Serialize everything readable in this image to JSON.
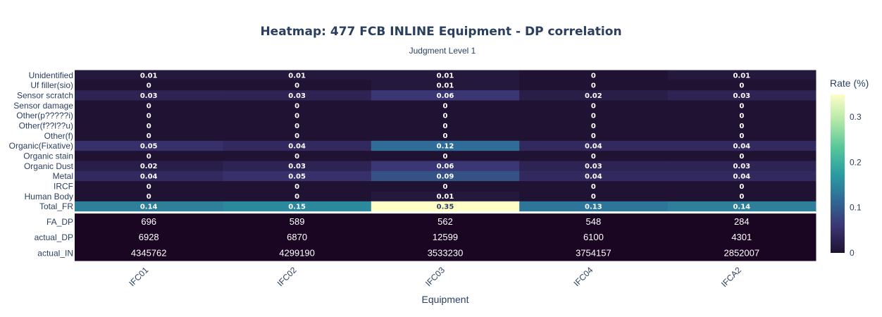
{
  "chart_data": {
    "type": "heatmap",
    "title": "Heatmap: 477  FCB INLINE Equipment - DP correlation",
    "subtitle": "Judgment Level 1",
    "xlabel": "Equipment",
    "colorbar_title": "Rate (%)",
    "colorbar_ticks": [
      "0",
      "0.1",
      "0.2",
      "0.3"
    ],
    "colorbar_range": [
      0,
      0.35
    ],
    "colorscale": [
      "#1f1232",
      "#3b3573",
      "#2f6a96",
      "#2a9ea1",
      "#57c79a",
      "#b1e8a8",
      "#fefec6"
    ],
    "x": [
      "IFC01",
      "IFC02",
      "IFC03",
      "IFC04",
      "IFCA2"
    ],
    "rate_rows": [
      {
        "name": "Unidentified",
        "values": [
          0.01,
          0.01,
          0.01,
          0,
          0.01
        ],
        "labels": [
          "0.01",
          "0.01",
          "0.01",
          "0",
          "0.01"
        ]
      },
      {
        "name": "Uf filler(sio)",
        "values": [
          0,
          0,
          0.01,
          0,
          0
        ],
        "labels": [
          "0",
          "0",
          "0.01",
          "0",
          "0"
        ]
      },
      {
        "name": "Sensor scratch",
        "values": [
          0.03,
          0.03,
          0.06,
          0.02,
          0.03
        ],
        "labels": [
          "0.03",
          "0.03",
          "0.06",
          "0.02",
          "0.03"
        ]
      },
      {
        "name": "Sensor damage",
        "values": [
          0,
          0,
          0,
          0,
          0
        ],
        "labels": [
          "0",
          "0",
          "0",
          "0",
          "0"
        ]
      },
      {
        "name": "Other(p?????i)",
        "values": [
          0,
          0,
          0,
          0,
          0
        ],
        "labels": [
          "0",
          "0",
          "0",
          "0",
          "0"
        ]
      },
      {
        "name": "Other(f??l??u)",
        "values": [
          0,
          0,
          0,
          0,
          0
        ],
        "labels": [
          "0",
          "0",
          "0",
          "0",
          "0"
        ]
      },
      {
        "name": "Other(f)",
        "values": [
          0,
          0,
          0,
          0,
          0
        ],
        "labels": [
          "0",
          "0",
          "0",
          "0",
          "0"
        ]
      },
      {
        "name": "Organic(Fixative)",
        "values": [
          0.05,
          0.04,
          0.12,
          0.04,
          0.04
        ],
        "labels": [
          "0.05",
          "0.04",
          "0.12",
          "0.04",
          "0.04"
        ]
      },
      {
        "name": "Organic stain",
        "values": [
          0,
          0,
          0,
          0,
          0
        ],
        "labels": [
          "0",
          "0",
          "0",
          "0",
          "0"
        ]
      },
      {
        "name": "Organic Dust",
        "values": [
          0.02,
          0.03,
          0.06,
          0.03,
          0.03
        ],
        "labels": [
          "0.02",
          "0.03",
          "0.06",
          "0.03",
          "0.03"
        ]
      },
      {
        "name": "Metal",
        "values": [
          0.04,
          0.05,
          0.09,
          0.04,
          0.04
        ],
        "labels": [
          "0.04",
          "0.05",
          "0.09",
          "0.04",
          "0.04"
        ]
      },
      {
        "name": "IRCF",
        "values": [
          0,
          0,
          0,
          0,
          0
        ],
        "labels": [
          "0",
          "0",
          "0",
          "0",
          "0"
        ]
      },
      {
        "name": "Human Body",
        "values": [
          0,
          0,
          0.01,
          0,
          0
        ],
        "labels": [
          "0",
          "0",
          "0.01",
          "0",
          "0"
        ]
      },
      {
        "name": "Total_FR",
        "values": [
          0.14,
          0.15,
          0.35,
          0.13,
          0.14
        ],
        "labels": [
          "0.14",
          "0.15",
          "0.35",
          "0.13",
          "0.14"
        ]
      }
    ],
    "count_rows": [
      {
        "name": "FA_DP",
        "labels": [
          "696",
          "589",
          "562",
          "548",
          "284"
        ]
      },
      {
        "name": "actual_DP",
        "labels": [
          "6928",
          "6870",
          "12599",
          "6100",
          "4301"
        ]
      },
      {
        "name": "actual_IN",
        "labels": [
          "4345762",
          "4299190",
          "3533230",
          "3754157",
          "2852007"
        ]
      }
    ],
    "count_cell_color": "#1a0522",
    "separator_color": "#ffffff"
  }
}
